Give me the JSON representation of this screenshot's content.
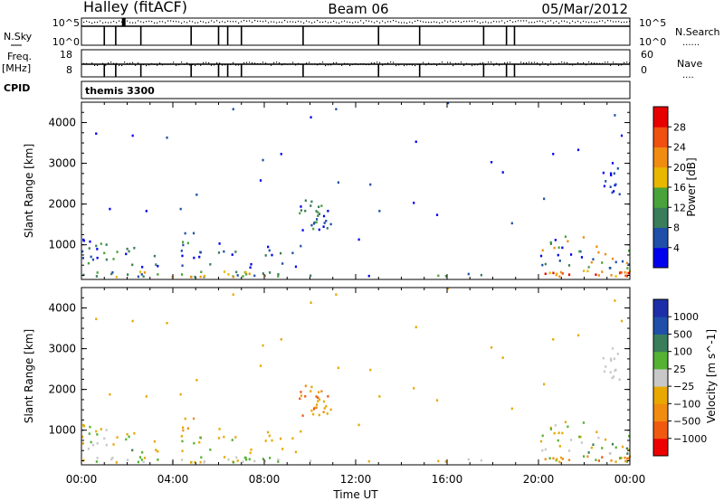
{
  "header": {
    "radar": "Halley (fitACF)",
    "beam": "Beam 06",
    "date": "05/Mar/2012"
  },
  "status_panel": {
    "left_labels": {
      "nsky": "N.Sky",
      "freq": "Freq.",
      "mhz": "[MHz]",
      "cpid": "CPID"
    },
    "nsky_ticks": [
      "10^5",
      "10^0"
    ],
    "nsearch_ticks": [
      "10^5",
      "10^0"
    ],
    "freq_ticks": [
      "18",
      "8"
    ],
    "nave_ticks": [
      "60",
      "0"
    ],
    "right_labels": {
      "nsearch": "N.Search",
      "nave": "Nave"
    },
    "cpid_text": "themis 3300"
  },
  "colors": {
    "power": [
      "#0000ee",
      "#1f4fa8",
      "#3a7d5a",
      "#4aa33a",
      "#e8b800",
      "#f08c10",
      "#f05010",
      "#e80000"
    ],
    "velocity": [
      "#ee0000",
      "#f05a10",
      "#f08c10",
      "#e8a800",
      "#c8c8c8",
      "#55b233",
      "#3a7d5a",
      "#1f4fa8",
      "#1d2fa8"
    ]
  },
  "chart_data": [
    {
      "type": "heatmap",
      "name": "power",
      "ylabel": "Slant Range [km]",
      "xlabel": "",
      "yticks": [
        "1000",
        "2000",
        "3000",
        "4000"
      ],
      "ylim": [
        150,
        4500
      ],
      "xticks": [
        "00:00",
        "04:00",
        "08:00",
        "12:00",
        "16:00",
        "20:00",
        "00:00"
      ],
      "xlim_hours": [
        0,
        24
      ],
      "colorbar": {
        "label": "Power [dB]",
        "ticks": [
          "4",
          "8",
          "12",
          "16",
          "20",
          "24",
          "28"
        ],
        "range": [
          0,
          32
        ]
      }
    },
    {
      "type": "heatmap",
      "name": "velocity",
      "ylabel": "Slant Range [km]",
      "xlabel": "Time UT",
      "yticks": [
        "1000",
        "2000",
        "3000",
        "4000"
      ],
      "ylim": [
        150,
        4500
      ],
      "xticks": [
        "00:00",
        "04:00",
        "08:00",
        "12:00",
        "16:00",
        "20:00",
        "00:00"
      ],
      "xlim_hours": [
        0,
        24
      ],
      "colorbar": {
        "label": "Velocity [m s^-1]",
        "ticks": [
          "1000",
          "500",
          "100",
          "25",
          "−25",
          "−100",
          "−500",
          "−1000"
        ]
      }
    }
  ]
}
